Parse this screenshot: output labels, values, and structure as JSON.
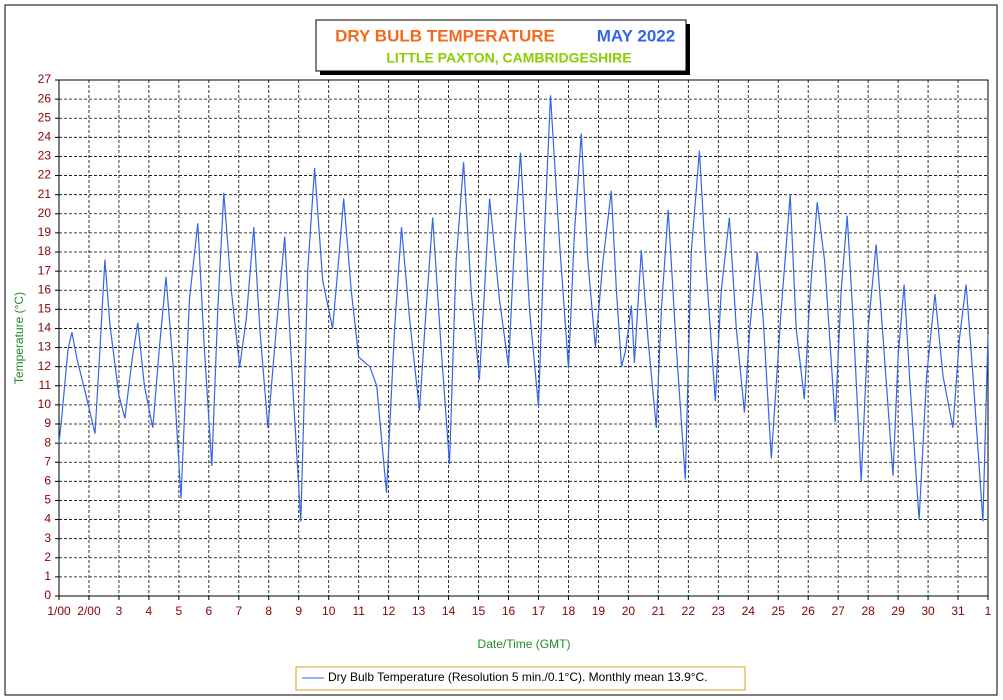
{
  "chart_data": {
    "type": "line",
    "title": "DRY BULB TEMPERATURE",
    "title_period": "MAY 2022",
    "subtitle": "LITTLE PAXTON, CAMBRIDGESHIRE",
    "title_color": "#f26b1d",
    "period_color": "#3366e6",
    "subtitle_color": "#8ccc00",
    "x_label": "Date/Time (GMT)",
    "y_label": "Temperature (°C)",
    "xlim": [
      0,
      31
    ],
    "ylim": [
      0,
      27
    ],
    "grid": true,
    "yticks": [
      0,
      1,
      2,
      3,
      4,
      5,
      6,
      7,
      8,
      9,
      10,
      11,
      12,
      13,
      14,
      15,
      16,
      17,
      18,
      19,
      20,
      21,
      22,
      23,
      24,
      25,
      26,
      27
    ],
    "xticks": [
      {
        "value": 0,
        "label": "1/00"
      },
      {
        "value": 1,
        "label": "2/00"
      },
      {
        "value": 2,
        "label": "3"
      },
      {
        "value": 3,
        "label": "4"
      },
      {
        "value": 4,
        "label": "5"
      },
      {
        "value": 5,
        "label": "6"
      },
      {
        "value": 6,
        "label": "7"
      },
      {
        "value": 7,
        "label": "8"
      },
      {
        "value": 8,
        "label": "9"
      },
      {
        "value": 9,
        "label": "10"
      },
      {
        "value": 10,
        "label": "11"
      },
      {
        "value": 11,
        "label": "12"
      },
      {
        "value": 12,
        "label": "13"
      },
      {
        "value": 13,
        "label": "14"
      },
      {
        "value": 14,
        "label": "15"
      },
      {
        "value": 15,
        "label": "16"
      },
      {
        "value": 16,
        "label": "17"
      },
      {
        "value": 17,
        "label": "18"
      },
      {
        "value": 18,
        "label": "19"
      },
      {
        "value": 19,
        "label": "20"
      },
      {
        "value": 20,
        "label": "21"
      },
      {
        "value": 21,
        "label": "22"
      },
      {
        "value": 22,
        "label": "23"
      },
      {
        "value": 23,
        "label": "24"
      },
      {
        "value": 24,
        "label": "25"
      },
      {
        "value": 25,
        "label": "26"
      },
      {
        "value": 26,
        "label": "27"
      },
      {
        "value": 27,
        "label": "28"
      },
      {
        "value": 28,
        "label": "29"
      },
      {
        "value": 29,
        "label": "30"
      },
      {
        "value": 30,
        "label": "31"
      },
      {
        "value": 31,
        "label": "1"
      }
    ],
    "x": [
      0,
      0.1,
      0.3,
      0.43,
      0.6,
      0.9,
      1.2,
      1.35,
      1.53,
      1.7,
      2.0,
      2.2,
      2.45,
      2.63,
      2.85,
      3.13,
      3.35,
      3.57,
      3.8,
      4.07,
      4.35,
      4.63,
      4.85,
      5.1,
      5.3,
      5.5,
      5.75,
      6.03,
      6.25,
      6.5,
      6.7,
      6.97,
      7.25,
      7.53,
      7.8,
      8.07,
      8.3,
      8.53,
      8.8,
      9.13,
      9.3,
      9.5,
      9.75,
      10.0,
      10.37,
      10.6,
      10.93,
      11.2,
      11.43,
      11.7,
      12.03,
      12.25,
      12.47,
      12.75,
      13.03,
      13.25,
      13.5,
      13.75,
      14.03,
      14.2,
      14.37,
      14.7,
      15.0,
      15.2,
      15.4,
      15.7,
      16.0,
      16.2,
      16.4,
      16.7,
      17.0,
      17.2,
      17.43,
      17.65,
      17.9,
      18.15,
      18.43,
      18.6,
      18.77,
      18.9,
      19.1,
      19.2,
      19.43,
      19.65,
      19.93,
      20.1,
      20.33,
      20.6,
      20.9,
      21.1,
      21.37,
      21.6,
      21.9,
      22.1,
      22.37,
      22.6,
      22.87,
      23.05,
      23.3,
      23.5,
      23.77,
      24.1,
      24.4,
      24.6,
      24.87,
      25.05,
      25.3,
      25.55,
      25.9,
      26.1,
      26.3,
      26.5,
      26.77,
      27.0,
      27.27,
      27.5,
      27.83,
      28.0,
      28.2,
      28.4,
      28.7,
      28.95,
      29.23,
      29.5,
      29.83,
      30.05,
      30.27,
      30.5,
      30.83,
      31.0
    ],
    "series": [
      {
        "name": "Dry Bulb Temperature (Resolution 5 min./0.1°C). Monthly mean 13.9°C.",
        "color": "#3366e6",
        "values": [
          8.0,
          9.5,
          12.9,
          13.8,
          12.4,
          10.5,
          8.5,
          12.5,
          17.6,
          14.2,
          10.5,
          9.3,
          12.5,
          14.3,
          11.0,
          8.8,
          13.0,
          16.7,
          12.2,
          5.1,
          15.5,
          19.5,
          13.0,
          6.8,
          15.0,
          21.1,
          16.0,
          12.0,
          14.5,
          19.3,
          14.0,
          8.8,
          14.0,
          18.8,
          11.0,
          3.9,
          17.0,
          22.4,
          16.5,
          14.0,
          17.0,
          20.8,
          16.0,
          12.5,
          12.0,
          11.0,
          5.4,
          14.0,
          19.3,
          14.5,
          9.7,
          15.0,
          19.8,
          13.0,
          6.9,
          17.5,
          22.7,
          16.0,
          11.3,
          16.0,
          20.8,
          15.5,
          12.0,
          18.5,
          23.2,
          15.0,
          9.9,
          19.0,
          26.2,
          18.5,
          11.9,
          19.0,
          24.2,
          17.5,
          13.0,
          17.5,
          21.2,
          16.0,
          12.0,
          12.8,
          15.2,
          12.2,
          18.1,
          13.5,
          8.8,
          15.0,
          20.2,
          13.0,
          6.1,
          18.0,
          23.3,
          17.0,
          10.2,
          16.0,
          19.8,
          14.0,
          9.6,
          14.0,
          18.0,
          14.5,
          7.2,
          15.0,
          21.0,
          14.0,
          10.3,
          15.5,
          20.6,
          17.5,
          9.1,
          16.0,
          19.9,
          14.5,
          6.0,
          14.0,
          18.4,
          13.5,
          6.3,
          12.5,
          16.3,
          11.0,
          4.0,
          11.5,
          15.8,
          11.5,
          8.8,
          13.5,
          16.3,
          11.5,
          3.9,
          13.7
        ]
      }
    ]
  }
}
